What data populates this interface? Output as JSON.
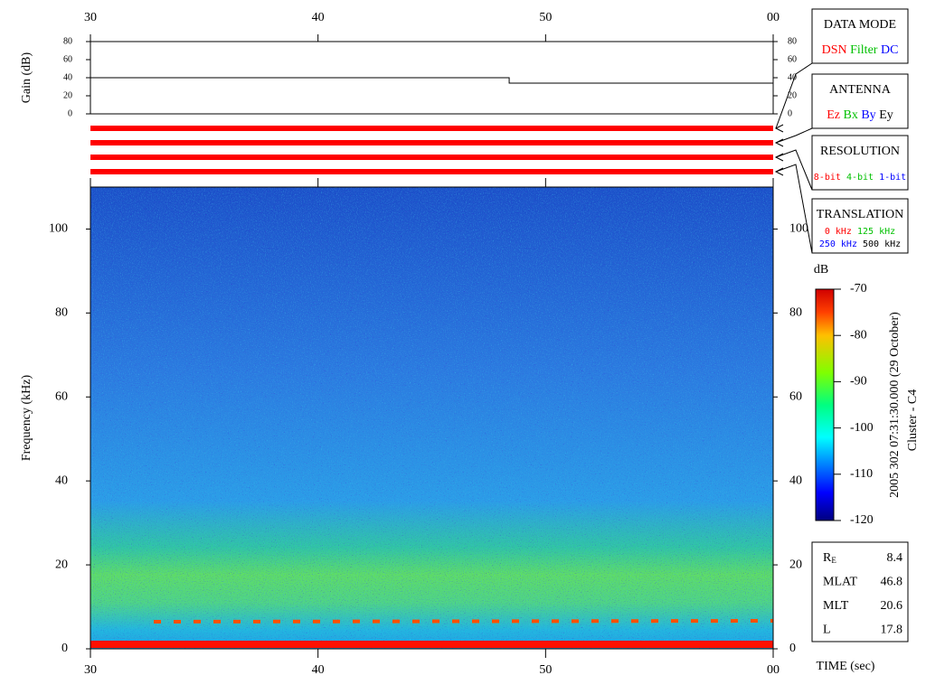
{
  "chart_data": [
    {
      "type": "line",
      "ylabel": "Gain (dB)",
      "x": [
        30,
        48.4,
        48.4,
        60
      ],
      "values": [
        40,
        40,
        34,
        34
      ],
      "color": "#000000",
      "xlim": [
        30,
        60
      ],
      "xticks": [
        30,
        40,
        50,
        {
          "value": 60,
          "label": "00"
        }
      ],
      "ylim": [
        0,
        80
      ],
      "yticks": [
        0,
        20,
        40,
        60,
        80
      ]
    },
    {
      "type": "spectrogram",
      "ylabel": "Frequency (kHz)",
      "xlabel": "TIME (sec)",
      "xlim": [
        30,
        60
      ],
      "xticks": [
        30,
        40,
        50,
        {
          "value": 60,
          "label": "00"
        }
      ],
      "ylim": [
        0,
        110
      ],
      "yticks": [
        0,
        20,
        40,
        60,
        80,
        100
      ],
      "colorbar": {
        "label": "dB",
        "lim": [
          -120,
          -70
        ],
        "ticks": [
          -120,
          -110,
          -100,
          -90,
          -80,
          -70
        ]
      }
    }
  ],
  "panels": [
    {
      "title": "DATA MODE",
      "status_color": "#ff0000",
      "options": [
        {
          "label": "DSN",
          "color": "#ff0000"
        },
        {
          "label": "Filter",
          "color": "#00c000"
        },
        {
          "label": "DC",
          "color": "#0000ff"
        }
      ]
    },
    {
      "title": "ANTENNA",
      "status_color": "#ff0000",
      "options": [
        {
          "label": "Ez",
          "color": "#ff0000"
        },
        {
          "label": "Bx",
          "color": "#00c000"
        },
        {
          "label": "By",
          "color": "#0000ff"
        },
        {
          "label": "Ey",
          "color": "#000000"
        }
      ]
    },
    {
      "title": "RESOLUTION",
      "status_color": "#ff0000",
      "options": [
        {
          "label": "8-bit",
          "color": "#ff0000"
        },
        {
          "label": "4-bit",
          "color": "#00c000"
        },
        {
          "label": "1-bit",
          "color": "#0000ff"
        }
      ]
    },
    {
      "title": "TRANSLATION",
      "status_color": "#ff0000",
      "options": [
        {
          "label": "0 kHz",
          "color": "#ff0000"
        },
        {
          "label": "125 kHz",
          "color": "#00c000"
        },
        {
          "label": "250 kHz",
          "color": "#0000ff"
        },
        {
          "label": "500 kHz",
          "color": "#000000"
        }
      ]
    }
  ],
  "ephemeris": [
    {
      "label": "R",
      "subscript": "E",
      "value": 8.4
    },
    {
      "label": "MLAT",
      "value": 46.8
    },
    {
      "label": "MLT",
      "value": 20.6
    },
    {
      "label": "L",
      "value": 17.8
    }
  ],
  "timestamp": "2005 302 07:31:30.000 (29 October)",
  "spacecraft": "Cluster - C4"
}
